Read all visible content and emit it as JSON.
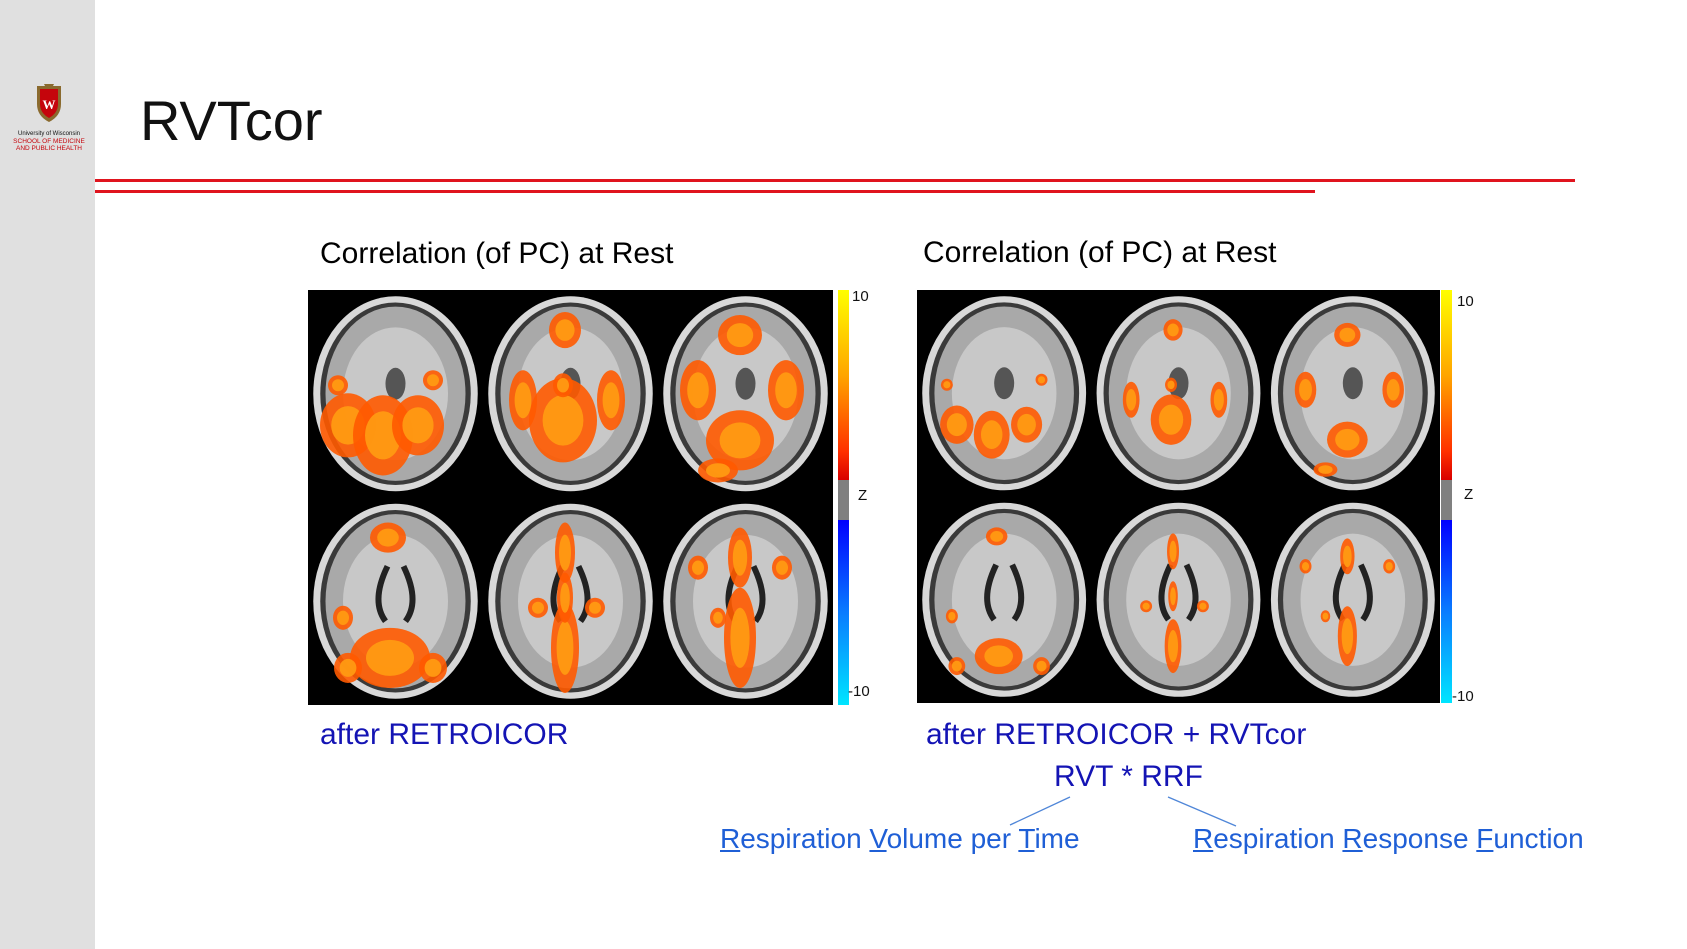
{
  "slide": {
    "title": "RVTcor",
    "logo": {
      "line1": "University of Wisconsin",
      "line2": "SCHOOL OF MEDICINE",
      "line3": "AND PUBLIC HEALTH",
      "crest_letter": "W",
      "crest_color": "#c5050c"
    },
    "accent_color": "#e0141e"
  },
  "panels": [
    {
      "title": "Correlation (of PC) at Rest",
      "caption": "after RETROICOR",
      "colorbar": {
        "max_label": "10",
        "mid_label": "Z",
        "min_label": "-10"
      },
      "activation_strength": 1.0
    },
    {
      "title": "Correlation (of PC) at Rest",
      "caption": "after RETROICOR + RVTcor",
      "formula": "RVT * RRF",
      "colorbar": {
        "max_label": "10",
        "mid_label": "Z",
        "min_label": "-10"
      },
      "activation_strength": 0.6
    }
  ],
  "acronyms": {
    "rvt": {
      "parts": [
        {
          "initial": "R",
          "rest": "espiration "
        },
        {
          "initial": "V",
          "rest": "olume per "
        },
        {
          "initial": "T",
          "rest": "ime"
        }
      ]
    },
    "rrf": {
      "parts": [
        {
          "initial": "R",
          "rest": "espiration "
        },
        {
          "initial": "R",
          "rest": "esponse "
        },
        {
          "initial": "F",
          "rest": "unction"
        }
      ]
    }
  },
  "colors": {
    "caption": "#1414b4",
    "acronym": "#1f5fd6",
    "heat_hot": "#ff9a12",
    "heat_warm": "#ff5a00",
    "colorbar_top": "#ffff00",
    "colorbar_bottom": "#00e5ff"
  }
}
